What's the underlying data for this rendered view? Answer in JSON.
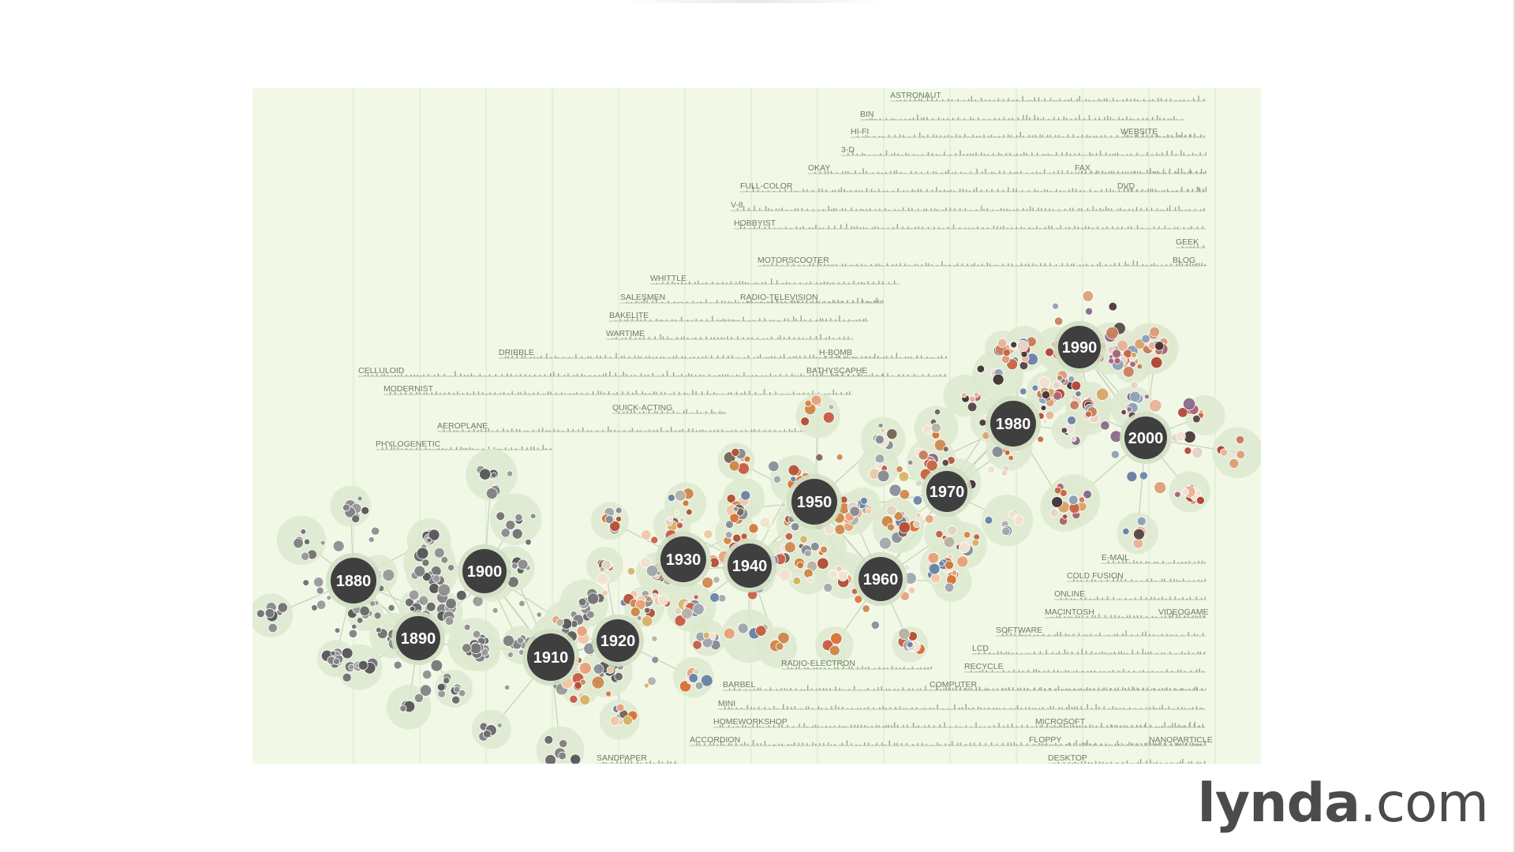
{
  "decades": [
    "1880",
    "1890",
    "1900",
    "1910",
    "1920",
    "1930",
    "1940",
    "1950",
    "1960",
    "1970",
    "1980",
    "1990",
    "2000"
  ],
  "words_top": [
    "ASTRONAUT",
    "BIN",
    "HI-FI",
    "WEBSITE",
    "3-D",
    "OKAY",
    "FAX",
    "FULL-COLOR",
    "DVD",
    "V-8",
    "HOBBYIST",
    "GEEK",
    "BLOG",
    "MOTORSCOOTER",
    "WHITTLE",
    "SALESMEN",
    "RADIO-TELEVISION",
    "BAKELITE",
    "WARTIME",
    "DRIBBLE",
    "H-BOMB",
    "CELLULOID",
    "BATHYSCAPHE",
    "MODERNIST",
    "QUICK-ACTING",
    "AEROPLANE",
    "PHYLOGENETIC"
  ],
  "words_bottom": [
    "E-MAIL",
    "COLD FUSION",
    "ONLINE",
    "MACINTOSH",
    "VIDEOGAME",
    "SOFTWARE",
    "LCD",
    "RECYCLE",
    "RADIO-ELECTRON",
    "BARBEL",
    "COMPUTER",
    "MINI",
    "HOMEWORKSHOP",
    "MICROSOFT",
    "ACCORDION",
    "FLOPPY",
    "NANOPARTICLE",
    "SANDPAPER",
    "DESKTOP"
  ],
  "logo": {
    "name": "lynda",
    "tld": ".com"
  },
  "colors": {
    "panel_bg": "#f1f8e6",
    "hub": "#3f3f3f",
    "grey_node": "#7f7f7f",
    "orange_node": "#d9773a"
  }
}
